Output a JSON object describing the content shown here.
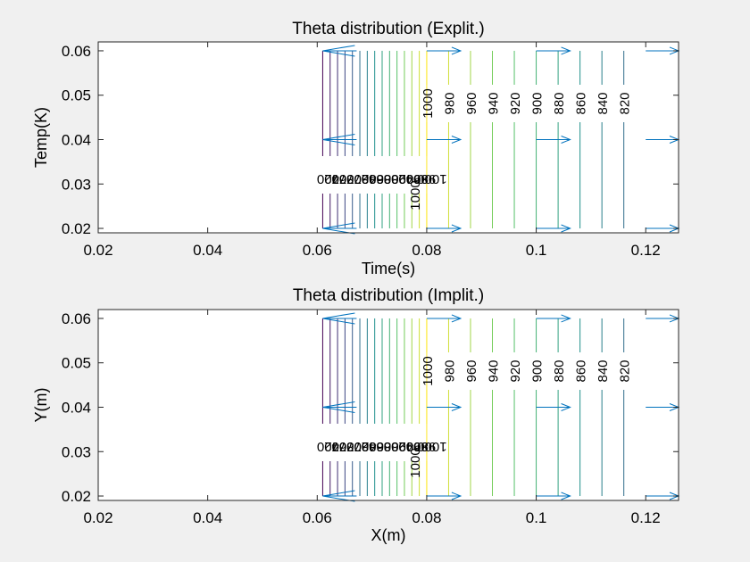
{
  "figure": {
    "background": "#f0f0f0"
  },
  "colors": {
    "axes_bg": "#ffffff",
    "axes_line": "#262626",
    "text": "#000000",
    "arrow": "#0072bd",
    "colormap": [
      "#440154",
      "#3b528b",
      "#21918c",
      "#5ec962",
      "#fde725"
    ]
  },
  "chart_data": [
    {
      "type": "contour",
      "title": "Theta distribution (Explit.)",
      "xlabel": "Time(s)",
      "ylabel": "Temp(K)",
      "xlim": [
        0.02,
        0.126
      ],
      "ylim": [
        0.019,
        0.062
      ],
      "xticks": [
        0.02,
        0.04,
        0.06,
        0.08,
        0.1,
        0.12
      ],
      "xtick_labels": [
        "0.02",
        "0.04",
        "0.06",
        "0.08",
        "0.1",
        "0.12"
      ],
      "yticks": [
        0.02,
        0.03,
        0.04,
        0.05,
        0.06
      ],
      "ytick_labels": [
        "0.02",
        "0.03",
        "0.04",
        "0.05",
        "0.06"
      ],
      "grid": false,
      "left_region": {
        "x_from": 0.061,
        "x_to": 0.08,
        "level_from": 720,
        "level_to": 1000,
        "step": 20
      },
      "right_region": {
        "x": [
          0.08,
          0.084,
          0.088,
          0.092,
          0.096,
          0.1,
          0.104,
          0.108,
          0.112,
          0.116
        ],
        "levels": [
          1000,
          980,
          960,
          940,
          920,
          900,
          880,
          860,
          840,
          820
        ]
      },
      "contour_labels_right": [
        "1000",
        "980",
        "960",
        "940",
        "920",
        "900",
        "880",
        "860",
        "840",
        "820"
      ],
      "contour_labels_left": [
        "720",
        "740",
        "760",
        "780",
        "800",
        "820",
        "840",
        "860",
        "880",
        "900",
        "920",
        "940",
        "960",
        "980",
        "1000"
      ],
      "quiver": {
        "y": [
          0.02,
          0.04,
          0.06
        ],
        "left_x": [
          0.061
        ],
        "right_x": [
          0.08,
          0.1,
          0.12
        ]
      }
    },
    {
      "type": "contour",
      "title": "Theta distribution (Implit.)",
      "xlabel": "X(m)",
      "ylabel": "Y(m)",
      "xlim": [
        0.02,
        0.126
      ],
      "ylim": [
        0.019,
        0.062
      ],
      "xticks": [
        0.02,
        0.04,
        0.06,
        0.08,
        0.1,
        0.12
      ],
      "xtick_labels": [
        "0.02",
        "0.04",
        "0.06",
        "0.08",
        "0.1",
        "0.12"
      ],
      "yticks": [
        0.02,
        0.03,
        0.04,
        0.05,
        0.06
      ],
      "ytick_labels": [
        "0.02",
        "0.03",
        "0.04",
        "0.05",
        "0.06"
      ],
      "grid": false,
      "left_region": {
        "x_from": 0.061,
        "x_to": 0.08,
        "level_from": 720,
        "level_to": 1000,
        "step": 20
      },
      "right_region": {
        "x": [
          0.08,
          0.084,
          0.088,
          0.092,
          0.096,
          0.1,
          0.104,
          0.108,
          0.112,
          0.116
        ],
        "levels": [
          1000,
          980,
          960,
          940,
          920,
          900,
          880,
          860,
          840,
          820
        ]
      },
      "contour_labels_right": [
        "1000",
        "980",
        "960",
        "940",
        "920",
        "900",
        "880",
        "860",
        "840",
        "820"
      ],
      "contour_labels_left": [
        "720",
        "740",
        "760",
        "780",
        "800",
        "820",
        "840",
        "860",
        "880",
        "900",
        "920",
        "940",
        "960",
        "980",
        "1000"
      ],
      "quiver": {
        "y": [
          0.02,
          0.04,
          0.06
        ],
        "left_x": [
          0.061
        ],
        "right_x": [
          0.08,
          0.1,
          0.12
        ]
      }
    }
  ]
}
